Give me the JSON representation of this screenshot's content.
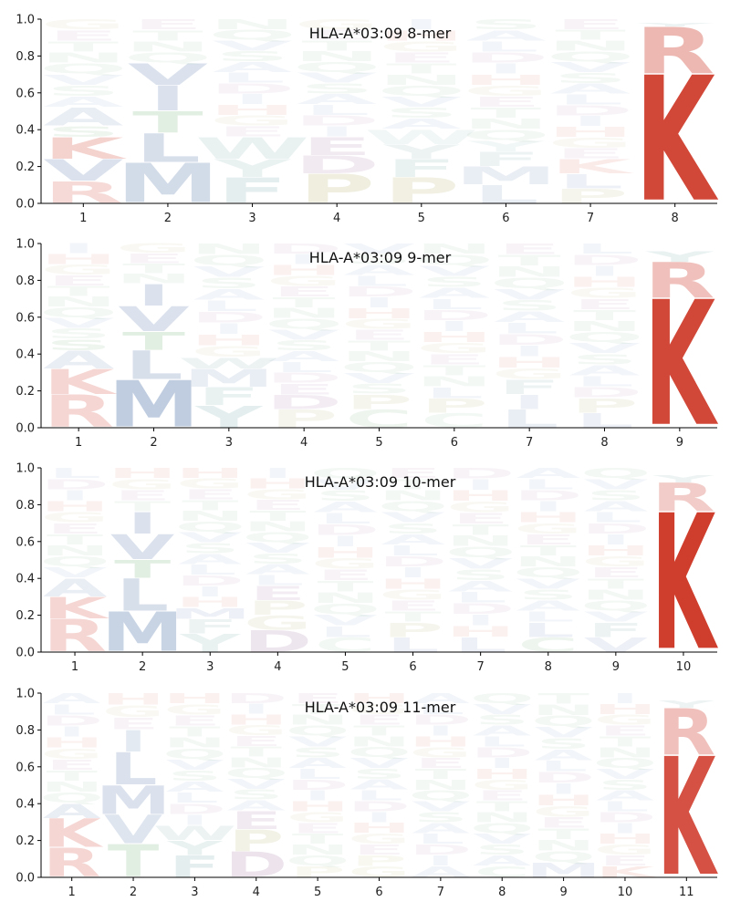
{
  "chart_data": [
    {
      "type": "logo",
      "title": "HLA-A*03:09 8-mer",
      "positions": [
        "1",
        "2",
        "3",
        "4",
        "5",
        "6",
        "7",
        "8"
      ],
      "ylim": [
        0,
        1
      ],
      "yticks": [
        "0.0",
        "0.2",
        "0.4",
        "0.6",
        "0.8",
        "1.0"
      ],
      "stacks": [
        [
          {
            "aa": "R",
            "h": 0.12,
            "a": 0.18
          },
          {
            "aa": "V",
            "h": 0.12,
            "a": 0.2
          },
          {
            "aa": "K",
            "h": 0.12,
            "a": 0.22
          },
          {
            "aa": "S",
            "h": 0.06,
            "a": 0.1
          },
          {
            "aa": "A",
            "h": 0.1,
            "a": 0.12
          },
          {
            "aa": "other",
            "h": 0.48,
            "a": 0.05
          }
        ],
        [
          {
            "aa": "M",
            "h": 0.22,
            "a": 0.25
          },
          {
            "aa": "L",
            "h": 0.16,
            "a": 0.22
          },
          {
            "aa": "T",
            "h": 0.12,
            "a": 0.18
          },
          {
            "aa": "I",
            "h": 0.14,
            "a": 0.2
          },
          {
            "aa": "V",
            "h": 0.12,
            "a": 0.2
          },
          {
            "aa": "other",
            "h": 0.24,
            "a": 0.05
          }
        ],
        [
          {
            "aa": "F",
            "h": 0.14,
            "a": 0.15
          },
          {
            "aa": "Y",
            "h": 0.1,
            "a": 0.12
          },
          {
            "aa": "W",
            "h": 0.12,
            "a": 0.12
          },
          {
            "aa": "other",
            "h": 0.64,
            "a": 0.05
          }
        ],
        [
          {
            "aa": "P",
            "h": 0.16,
            "a": 0.18
          },
          {
            "aa": "D",
            "h": 0.1,
            "a": 0.12
          },
          {
            "aa": "E",
            "h": 0.1,
            "a": 0.12
          },
          {
            "aa": "other",
            "h": 0.64,
            "a": 0.05
          }
        ],
        [
          {
            "aa": "P",
            "h": 0.14,
            "a": 0.16
          },
          {
            "aa": "F",
            "h": 0.1,
            "a": 0.12
          },
          {
            "aa": "Y",
            "h": 0.08,
            "a": 0.1
          },
          {
            "aa": "W",
            "h": 0.08,
            "a": 0.08
          },
          {
            "aa": "other",
            "h": 0.6,
            "a": 0.05
          }
        ],
        [
          {
            "aa": "L",
            "h": 0.1,
            "a": 0.12
          },
          {
            "aa": "M",
            "h": 0.1,
            "a": 0.12
          },
          {
            "aa": "F",
            "h": 0.08,
            "a": 0.1
          },
          {
            "aa": "Y",
            "h": 0.06,
            "a": 0.08
          },
          {
            "aa": "other",
            "h": 0.66,
            "a": 0.05
          }
        ],
        [
          {
            "aa": "P",
            "h": 0.08,
            "a": 0.1
          },
          {
            "aa": "L",
            "h": 0.08,
            "a": 0.1
          },
          {
            "aa": "K",
            "h": 0.08,
            "a": 0.1
          },
          {
            "aa": "other",
            "h": 0.76,
            "a": 0.05
          }
        ],
        [
          {
            "aa": "K",
            "h": 0.7,
            "a": 0.9
          },
          {
            "aa": "R",
            "h": 0.26,
            "a": 0.35
          },
          {
            "aa": "Y",
            "h": 0.02,
            "a": 0.1
          }
        ]
      ]
    },
    {
      "type": "logo",
      "title": "HLA-A*03:09 9-mer",
      "positions": [
        "1",
        "2",
        "3",
        "4",
        "5",
        "6",
        "7",
        "8",
        "9"
      ],
      "ylim": [
        0,
        1
      ],
      "yticks": [
        "0.0",
        "0.2",
        "0.4",
        "0.6",
        "0.8",
        "1.0"
      ],
      "stacks": [
        [
          {
            "aa": "R",
            "h": 0.18,
            "a": 0.2
          },
          {
            "aa": "K",
            "h": 0.14,
            "a": 0.2
          },
          {
            "aa": "A",
            "h": 0.1,
            "a": 0.12
          },
          {
            "aa": "S",
            "h": 0.06,
            "a": 0.1
          },
          {
            "aa": "other",
            "h": 0.52,
            "a": 0.05
          }
        ],
        [
          {
            "aa": "M",
            "h": 0.26,
            "a": 0.35
          },
          {
            "aa": "L",
            "h": 0.16,
            "a": 0.22
          },
          {
            "aa": "T",
            "h": 0.1,
            "a": 0.18
          },
          {
            "aa": "V",
            "h": 0.14,
            "a": 0.2
          },
          {
            "aa": "I",
            "h": 0.12,
            "a": 0.2
          },
          {
            "aa": "other",
            "h": 0.22,
            "a": 0.05
          }
        ],
        [
          {
            "aa": "Y",
            "h": 0.12,
            "a": 0.15
          },
          {
            "aa": "F",
            "h": 0.1,
            "a": 0.12
          },
          {
            "aa": "M",
            "h": 0.1,
            "a": 0.12
          },
          {
            "aa": "W",
            "h": 0.06,
            "a": 0.1
          },
          {
            "aa": "other",
            "h": 0.62,
            "a": 0.05
          }
        ],
        [
          {
            "aa": "P",
            "h": 0.1,
            "a": 0.1
          },
          {
            "aa": "D",
            "h": 0.08,
            "a": 0.1
          },
          {
            "aa": "E",
            "h": 0.06,
            "a": 0.08
          },
          {
            "aa": "other",
            "h": 0.76,
            "a": 0.05
          }
        ],
        [
          {
            "aa": "C",
            "h": 0.1,
            "a": 0.1
          },
          {
            "aa": "P",
            "h": 0.08,
            "a": 0.1
          },
          {
            "aa": "other",
            "h": 0.82,
            "a": 0.05
          }
        ],
        [
          {
            "aa": "C",
            "h": 0.08,
            "a": 0.08
          },
          {
            "aa": "P",
            "h": 0.08,
            "a": 0.1
          },
          {
            "aa": "L",
            "h": 0.06,
            "a": 0.08
          },
          {
            "aa": "other",
            "h": 0.78,
            "a": 0.05
          }
        ],
        [
          {
            "aa": "L",
            "h": 0.1,
            "a": 0.12
          },
          {
            "aa": "I",
            "h": 0.08,
            "a": 0.1
          },
          {
            "aa": "F",
            "h": 0.08,
            "a": 0.1
          },
          {
            "aa": "other",
            "h": 0.74,
            "a": 0.05
          }
        ],
        [
          {
            "aa": "L",
            "h": 0.08,
            "a": 0.1
          },
          {
            "aa": "P",
            "h": 0.08,
            "a": 0.1
          },
          {
            "aa": "other",
            "h": 0.84,
            "a": 0.05
          }
        ],
        [
          {
            "aa": "K",
            "h": 0.7,
            "a": 0.9
          },
          {
            "aa": "R",
            "h": 0.2,
            "a": 0.3
          },
          {
            "aa": "Y",
            "h": 0.06,
            "a": 0.12
          }
        ]
      ]
    },
    {
      "type": "logo",
      "title": "HLA-A*03:09 10-mer",
      "positions": [
        "1",
        "2",
        "3",
        "4",
        "5",
        "6",
        "7",
        "8",
        "9",
        "10"
      ],
      "ylim": [
        0,
        1
      ],
      "yticks": [
        "0.0",
        "0.2",
        "0.4",
        "0.6",
        "0.8",
        "1.0"
      ],
      "stacks": [
        [
          {
            "aa": "R",
            "h": 0.18,
            "a": 0.2
          },
          {
            "aa": "K",
            "h": 0.12,
            "a": 0.2
          },
          {
            "aa": "A",
            "h": 0.1,
            "a": 0.12
          },
          {
            "aa": "other",
            "h": 0.6,
            "a": 0.05
          }
        ],
        [
          {
            "aa": "M",
            "h": 0.22,
            "a": 0.3
          },
          {
            "aa": "L",
            "h": 0.18,
            "a": 0.22
          },
          {
            "aa": "T",
            "h": 0.1,
            "a": 0.18
          },
          {
            "aa": "V",
            "h": 0.14,
            "a": 0.2
          },
          {
            "aa": "I",
            "h": 0.12,
            "a": 0.2
          },
          {
            "aa": "other",
            "h": 0.24,
            "a": 0.05
          }
        ],
        [
          {
            "aa": "Y",
            "h": 0.1,
            "a": 0.12
          },
          {
            "aa": "F",
            "h": 0.08,
            "a": 0.1
          },
          {
            "aa": "M",
            "h": 0.06,
            "a": 0.1
          },
          {
            "aa": "other",
            "h": 0.76,
            "a": 0.05
          }
        ],
        [
          {
            "aa": "D",
            "h": 0.12,
            "a": 0.14
          },
          {
            "aa": "G",
            "h": 0.08,
            "a": 0.1
          },
          {
            "aa": "P",
            "h": 0.08,
            "a": 0.1
          },
          {
            "aa": "E",
            "h": 0.08,
            "a": 0.1
          },
          {
            "aa": "other",
            "h": 0.64,
            "a": 0.05
          }
        ],
        [
          {
            "aa": "C",
            "h": 0.08,
            "a": 0.08
          },
          {
            "aa": "L",
            "h": 0.06,
            "a": 0.08
          },
          {
            "aa": "other",
            "h": 0.86,
            "a": 0.05
          }
        ],
        [
          {
            "aa": "L",
            "h": 0.08,
            "a": 0.1
          },
          {
            "aa": "P",
            "h": 0.08,
            "a": 0.1
          },
          {
            "aa": "other",
            "h": 0.84,
            "a": 0.05
          }
        ],
        [
          {
            "aa": "L",
            "h": 0.08,
            "a": 0.1
          },
          {
            "aa": "other",
            "h": 0.92,
            "a": 0.05
          }
        ],
        [
          {
            "aa": "C",
            "h": 0.08,
            "a": 0.1
          },
          {
            "aa": "L",
            "h": 0.08,
            "a": 0.1
          },
          {
            "aa": "other",
            "h": 0.84,
            "a": 0.05
          }
        ],
        [
          {
            "aa": "V",
            "h": 0.08,
            "a": 0.1
          },
          {
            "aa": "F",
            "h": 0.08,
            "a": 0.1
          },
          {
            "aa": "other",
            "h": 0.84,
            "a": 0.05
          }
        ],
        [
          {
            "aa": "K",
            "h": 0.76,
            "a": 0.95
          },
          {
            "aa": "R",
            "h": 0.16,
            "a": 0.25
          },
          {
            "aa": "Y",
            "h": 0.04,
            "a": 0.1
          }
        ]
      ]
    },
    {
      "type": "logo",
      "title": "HLA-A*03:09 11-mer",
      "positions": [
        "1",
        "2",
        "3",
        "4",
        "5",
        "6",
        "7",
        "8",
        "9",
        "10",
        "11"
      ],
      "ylim": [
        0,
        1
      ],
      "yticks": [
        "0.0",
        "0.2",
        "0.4",
        "0.6",
        "0.8",
        "1.0"
      ],
      "stacks": [
        [
          {
            "aa": "R",
            "h": 0.16,
            "a": 0.2
          },
          {
            "aa": "K",
            "h": 0.16,
            "a": 0.2
          },
          {
            "aa": "A",
            "h": 0.08,
            "a": 0.12
          },
          {
            "aa": "other",
            "h": 0.6,
            "a": 0.05
          }
        ],
        [
          {
            "aa": "T",
            "h": 0.18,
            "a": 0.18
          },
          {
            "aa": "V",
            "h": 0.16,
            "a": 0.18
          },
          {
            "aa": "M",
            "h": 0.16,
            "a": 0.2
          },
          {
            "aa": "L",
            "h": 0.18,
            "a": 0.2
          },
          {
            "aa": "I",
            "h": 0.12,
            "a": 0.15
          },
          {
            "aa": "other",
            "h": 0.2,
            "a": 0.05
          }
        ],
        [
          {
            "aa": "F",
            "h": 0.12,
            "a": 0.14
          },
          {
            "aa": "Y",
            "h": 0.08,
            "a": 0.12
          },
          {
            "aa": "W",
            "h": 0.08,
            "a": 0.1
          },
          {
            "aa": "other",
            "h": 0.72,
            "a": 0.05
          }
        ],
        [
          {
            "aa": "D",
            "h": 0.14,
            "a": 0.16
          },
          {
            "aa": "P",
            "h": 0.12,
            "a": 0.14
          },
          {
            "aa": "E",
            "h": 0.1,
            "a": 0.12
          },
          {
            "aa": "other",
            "h": 0.64,
            "a": 0.05
          }
        ],
        [
          {
            "aa": "P",
            "h": 0.06,
            "a": 0.08
          },
          {
            "aa": "other",
            "h": 0.94,
            "a": 0.05
          }
        ],
        [
          {
            "aa": "G",
            "h": 0.06,
            "a": 0.08
          },
          {
            "aa": "P",
            "h": 0.06,
            "a": 0.08
          },
          {
            "aa": "other",
            "h": 0.88,
            "a": 0.05
          }
        ],
        [
          {
            "aa": "A",
            "h": 0.06,
            "a": 0.08
          },
          {
            "aa": "other",
            "h": 0.94,
            "a": 0.05
          }
        ],
        [
          {
            "aa": "C",
            "h": 0.06,
            "a": 0.08
          },
          {
            "aa": "other",
            "h": 0.94,
            "a": 0.05
          }
        ],
        [
          {
            "aa": "M",
            "h": 0.08,
            "a": 0.1
          },
          {
            "aa": "other",
            "h": 0.92,
            "a": 0.05
          }
        ],
        [
          {
            "aa": "K",
            "h": 0.06,
            "a": 0.1
          },
          {
            "aa": "other",
            "h": 0.94,
            "a": 0.05
          }
        ],
        [
          {
            "aa": "K",
            "h": 0.66,
            "a": 0.85
          },
          {
            "aa": "R",
            "h": 0.26,
            "a": 0.3
          },
          {
            "aa": "Y",
            "h": 0.04,
            "a": 0.1
          }
        ]
      ]
    }
  ],
  "colors": {
    "basic": "#cc3322",
    "hydrophobic": "#4a6fa5",
    "polar": "#5aa060",
    "acidic": "#8a4f8a",
    "proline_glycine": "#a8a050",
    "aromatic": "#4a8a8a",
    "other": "#b0b0b0",
    "axis": "#000000"
  }
}
